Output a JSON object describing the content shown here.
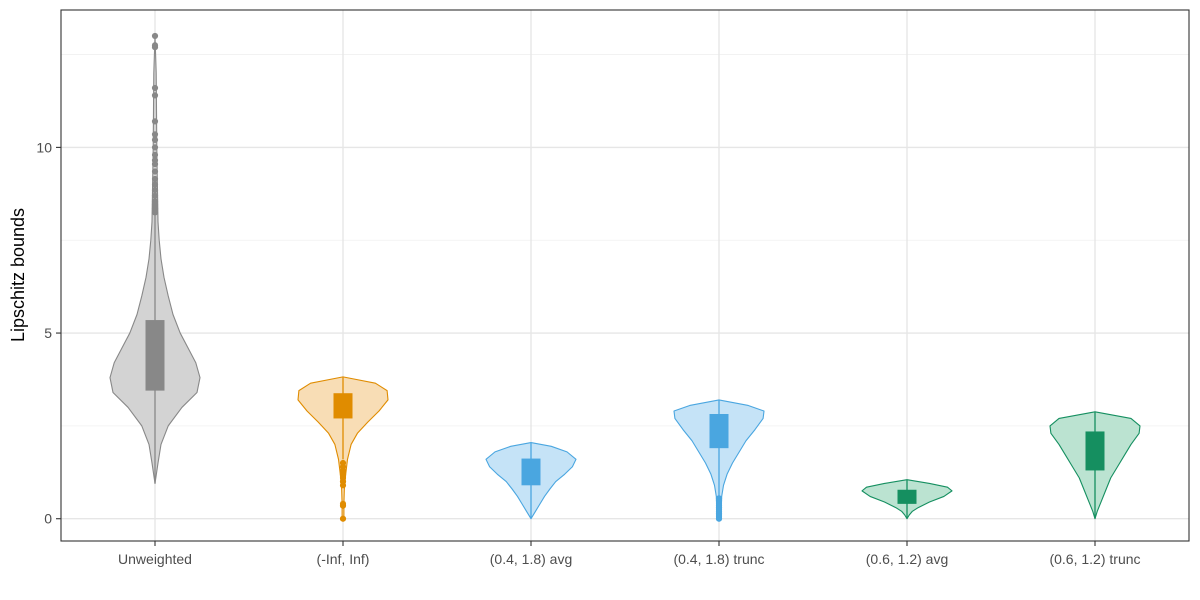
{
  "chart_data": {
    "type": "violin",
    "title": "",
    "xlabel": "",
    "ylabel": "Lipschitz bounds",
    "ylim": [
      -0.6,
      13.7
    ],
    "yticks": [
      0,
      5,
      10
    ],
    "ytick_labels": [
      "0",
      "5",
      "10"
    ],
    "grid": true,
    "legend": "none",
    "categories": [
      "Unweighted",
      "(-Inf, Inf)",
      "(0.4, 1.8) avg",
      "(0.4, 1.8) trunc",
      "(0.6, 1.2) avg",
      "(0.6, 1.2) trunc"
    ],
    "series": [
      {
        "name": "Unweighted",
        "color": "#888888",
        "fill": "#d3d3d3",
        "range": [
          0.95,
          13.0
        ],
        "box": {
          "q1": 3.45,
          "median": 4.3,
          "q3": 5.35
        },
        "whisker": [
          0.95,
          8.2
        ],
        "outliers": [
          8.25,
          8.35,
          8.45,
          8.55,
          8.7,
          8.85,
          9.0,
          9.15,
          9.35,
          9.55,
          9.65,
          9.8,
          10.0,
          10.2,
          10.35,
          10.7,
          11.4,
          11.6,
          12.7,
          12.75,
          13.0
        ],
        "density": [
          [
            0.95,
            0.0
          ],
          [
            1.5,
            0.05
          ],
          [
            2.0,
            0.1
          ],
          [
            2.5,
            0.22
          ],
          [
            3.0,
            0.45
          ],
          [
            3.4,
            0.7
          ],
          [
            3.8,
            0.75
          ],
          [
            4.2,
            0.68
          ],
          [
            4.6,
            0.55
          ],
          [
            5.0,
            0.42
          ],
          [
            5.5,
            0.3
          ],
          [
            6.0,
            0.22
          ],
          [
            6.5,
            0.15
          ],
          [
            7.0,
            0.1
          ],
          [
            7.5,
            0.07
          ],
          [
            8.0,
            0.05
          ],
          [
            9.0,
            0.04
          ],
          [
            10.0,
            0.03
          ],
          [
            11.0,
            0.025
          ],
          [
            12.0,
            0.02
          ],
          [
            13.0,
            0.0
          ]
        ]
      },
      {
        "name": "(-Inf, Inf)",
        "color": "#e08c00",
        "fill": "#f8ddb5",
        "range": [
          0.0,
          3.82
        ],
        "box": {
          "q1": 2.7,
          "median": 3.05,
          "q3": 3.38
        },
        "whisker": [
          1.6,
          3.82
        ],
        "outliers": [
          0.0,
          0.35,
          0.4,
          0.9,
          1.0,
          1.1,
          1.2,
          1.3,
          1.4,
          1.5
        ],
        "density": [
          [
            0.0,
            0.02
          ],
          [
            0.4,
            0.02
          ],
          [
            0.8,
            0.03
          ],
          [
            1.2,
            0.06
          ],
          [
            1.6,
            0.1
          ],
          [
            2.0,
            0.18
          ],
          [
            2.3,
            0.32
          ],
          [
            2.6,
            0.55
          ],
          [
            2.9,
            0.8
          ],
          [
            3.2,
            1.0
          ],
          [
            3.45,
            0.98
          ],
          [
            3.65,
            0.72
          ],
          [
            3.82,
            0.0
          ]
        ]
      },
      {
        "name": "(0.4, 1.8) avg",
        "color": "#4aa6e0",
        "fill": "#c5e3f7",
        "range": [
          0.0,
          2.05
        ],
        "box": {
          "q1": 0.9,
          "median": 1.3,
          "q3": 1.62
        },
        "whisker": [
          0.0,
          2.05
        ],
        "outliers": [],
        "density": [
          [
            0.0,
            0.0
          ],
          [
            0.2,
            0.1
          ],
          [
            0.4,
            0.2
          ],
          [
            0.6,
            0.3
          ],
          [
            0.8,
            0.42
          ],
          [
            1.0,
            0.55
          ],
          [
            1.2,
            0.75
          ],
          [
            1.4,
            0.92
          ],
          [
            1.6,
            1.0
          ],
          [
            1.8,
            0.8
          ],
          [
            1.95,
            0.45
          ],
          [
            2.05,
            0.0
          ]
        ]
      },
      {
        "name": "(0.4, 1.8) trunc",
        "color": "#4aa6e0",
        "fill": "#c5e3f7",
        "range": [
          0.0,
          3.2
        ],
        "box": {
          "q1": 1.9,
          "median": 2.3,
          "q3": 2.82
        },
        "whisker": [
          0.6,
          3.2
        ],
        "outliers": [
          0.0,
          0.05,
          0.1,
          0.15,
          0.2,
          0.25,
          0.3,
          0.35,
          0.4,
          0.45,
          0.5,
          0.55
        ],
        "density": [
          [
            0.0,
            0.05
          ],
          [
            0.3,
            0.05
          ],
          [
            0.6,
            0.06
          ],
          [
            0.9,
            0.1
          ],
          [
            1.2,
            0.18
          ],
          [
            1.5,
            0.3
          ],
          [
            1.8,
            0.45
          ],
          [
            2.1,
            0.6
          ],
          [
            2.4,
            0.8
          ],
          [
            2.7,
            0.98
          ],
          [
            2.9,
            1.0
          ],
          [
            3.05,
            0.65
          ],
          [
            3.2,
            0.0
          ]
        ]
      },
      {
        "name": "(0.6, 1.2) avg",
        "color": "#158f60",
        "fill": "#bbe3d1",
        "range": [
          0.0,
          1.05
        ],
        "box": {
          "q1": 0.4,
          "median": 0.6,
          "q3": 0.78
        },
        "whisker": [
          0.0,
          1.05
        ],
        "outliers": [],
        "density": [
          [
            0.0,
            0.0
          ],
          [
            0.1,
            0.05
          ],
          [
            0.2,
            0.12
          ],
          [
            0.3,
            0.25
          ],
          [
            0.45,
            0.5
          ],
          [
            0.6,
            0.82
          ],
          [
            0.75,
            1.0
          ],
          [
            0.85,
            0.9
          ],
          [
            0.95,
            0.5
          ],
          [
            1.05,
            0.0
          ]
        ]
      },
      {
        "name": "(0.6, 1.2) trunc",
        "color": "#158f60",
        "fill": "#bbe3d1",
        "range": [
          0.0,
          2.88
        ],
        "box": {
          "q1": 1.3,
          "median": 1.85,
          "q3": 2.35
        },
        "whisker": [
          0.0,
          2.88
        ],
        "outliers": [],
        "density": [
          [
            0.0,
            0.0
          ],
          [
            0.2,
            0.05
          ],
          [
            0.5,
            0.15
          ],
          [
            0.8,
            0.25
          ],
          [
            1.1,
            0.35
          ],
          [
            1.4,
            0.5
          ],
          [
            1.7,
            0.65
          ],
          [
            2.0,
            0.8
          ],
          [
            2.3,
            0.98
          ],
          [
            2.5,
            1.0
          ],
          [
            2.7,
            0.8
          ],
          [
            2.88,
            0.0
          ]
        ]
      }
    ]
  }
}
